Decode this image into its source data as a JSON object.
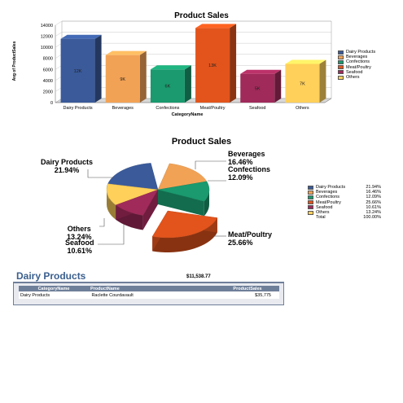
{
  "bar_chart": {
    "title": "Product Sales",
    "ylabel": "Avg of ProductSales",
    "xlabel": "CategoryName",
    "yticks": [
      "0",
      "2000",
      "4000",
      "6000",
      "8000",
      "10000",
      "12000",
      "14000"
    ],
    "legend": [
      "Dairy Products",
      "Beverages",
      "Confections",
      "Meat/Poultry",
      "Seafood",
      "Others"
    ]
  },
  "pie_chart": {
    "title": "Product Sales",
    "labels": [
      {
        "name": "Dairy Products",
        "pct": "21.94%"
      },
      {
        "name": "Beverages",
        "pct": "16.46%"
      },
      {
        "name": "Confections",
        "pct": "12.09%"
      },
      {
        "name": "Meat/Poultry",
        "pct": "25.66%"
      },
      {
        "name": "Seafood",
        "pct": "10.61%"
      },
      {
        "name": "Others",
        "pct": "13.24%"
      }
    ],
    "legend_total_label": "Total",
    "legend_total_value": "100.00%"
  },
  "report": {
    "group_title": "Dairy Products",
    "group_total": "$11,538.77",
    "columns": [
      "CategoryName",
      "ProductName",
      "ProductSales"
    ],
    "rows": [
      [
        "Dairy Products",
        "Raclette Courdavault",
        "$35,775"
      ]
    ]
  },
  "colors": {
    "dairy": "#3a5a9a",
    "beverages": "#f2a255",
    "confections": "#1a9a6e",
    "meat": "#e2541c",
    "seafood": "#a02a5a",
    "others": "#ffd05a"
  },
  "chart_data": [
    {
      "type": "bar",
      "title": "Product Sales",
      "xlabel": "CategoryName",
      "ylabel": "Avg of ProductSales",
      "categories": [
        "Dairy Products",
        "Beverages",
        "Confections",
        "Meat/Poultry",
        "Seafood",
        "Others"
      ],
      "values": [
        11538.77,
        8600,
        6000,
        13500,
        5200,
        7000
      ],
      "data_labels": [
        "12K",
        "9K",
        "6K",
        "13K",
        "5K",
        "7K"
      ],
      "ylim": [
        0,
        14000
      ],
      "grid": true,
      "legend_position": "right"
    },
    {
      "type": "pie",
      "title": "Product Sales",
      "categories": [
        "Dairy Products",
        "Beverages",
        "Confections",
        "Meat/Poultry",
        "Seafood",
        "Others"
      ],
      "values": [
        21.94,
        16.46,
        12.09,
        25.66,
        10.61,
        13.24
      ],
      "legend_position": "right"
    }
  ]
}
